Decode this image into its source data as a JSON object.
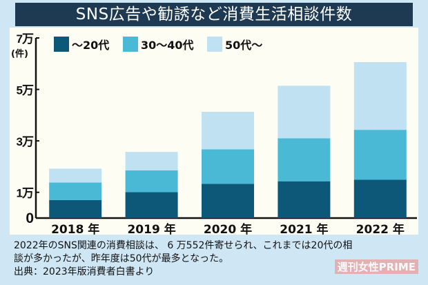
{
  "title": "SNS広告や勧誘など消費生活相談件数",
  "chart_data": {
    "type": "bar",
    "stacked": true,
    "title": "SNS広告や勧誘など消費生活相談件数",
    "ylabel": "(件)",
    "ylim": [
      0,
      70000
    ],
    "yticks": [
      {
        "value": 0,
        "label": "0"
      },
      {
        "value": 10000,
        "label": "1万"
      },
      {
        "value": 30000,
        "label": "3万"
      },
      {
        "value": 50000,
        "label": "5万"
      },
      {
        "value": 70000,
        "label": "7万"
      }
    ],
    "categories": [
      "2018 年",
      "2019 年",
      "2020 年",
      "2021 年",
      "2022 年"
    ],
    "legend_position": "top-left",
    "grid": false,
    "series": [
      {
        "name": "～20代",
        "color": "#0d5878",
        "values": [
          7000,
          10100,
          13300,
          14300,
          14900
        ]
      },
      {
        "name": "30～40代",
        "color": "#4ab9d6",
        "values": [
          6800,
          8400,
          13400,
          16700,
          19400
        ]
      },
      {
        "name": "50代～",
        "color": "#bfe1f1",
        "values": [
          5400,
          7200,
          14600,
          20400,
          26300
        ]
      }
    ]
  },
  "note": {
    "line1": "2022年のSNS関連の消費相談は、 6 万552件寄せられ、これまでは20代の相",
    "line2": "談が多かったが、昨年度は50代が最多となった。",
    "source": "出典：2023年版消費者白書より"
  },
  "brand": "週刊女性PRIME"
}
